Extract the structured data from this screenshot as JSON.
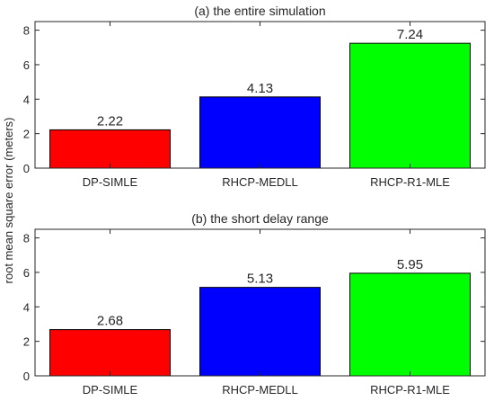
{
  "figure": {
    "ylabel": "root mean square error (meters)"
  },
  "chart_data": [
    {
      "type": "bar",
      "title": "(a) the entire simulation",
      "categories": [
        "DP-SIMLE",
        "RHCP-MEDLL",
        "RHCP-R1-MLE"
      ],
      "values": [
        2.22,
        4.13,
        7.24
      ],
      "data_labels": [
        "2.22",
        "4.13",
        "7.24"
      ],
      "bar_colors": [
        "#ff0000",
        "#0000ff",
        "#00ff00"
      ],
      "ylim": [
        0,
        8.5
      ],
      "yticks": [
        0,
        2,
        4,
        6,
        8
      ],
      "grid": false,
      "legend": "none"
    },
    {
      "type": "bar",
      "title": "(b) the short delay range",
      "categories": [
        "DP-SIMLE",
        "RHCP-MEDLL",
        "RHCP-R1-MLE"
      ],
      "values": [
        2.68,
        5.13,
        5.95
      ],
      "data_labels": [
        "2.68",
        "5.13",
        "5.95"
      ],
      "bar_colors": [
        "#ff0000",
        "#0000ff",
        "#00ff00"
      ],
      "ylim": [
        0,
        8.5
      ],
      "yticks": [
        0,
        2,
        4,
        6,
        8
      ],
      "grid": false,
      "legend": "none"
    }
  ]
}
